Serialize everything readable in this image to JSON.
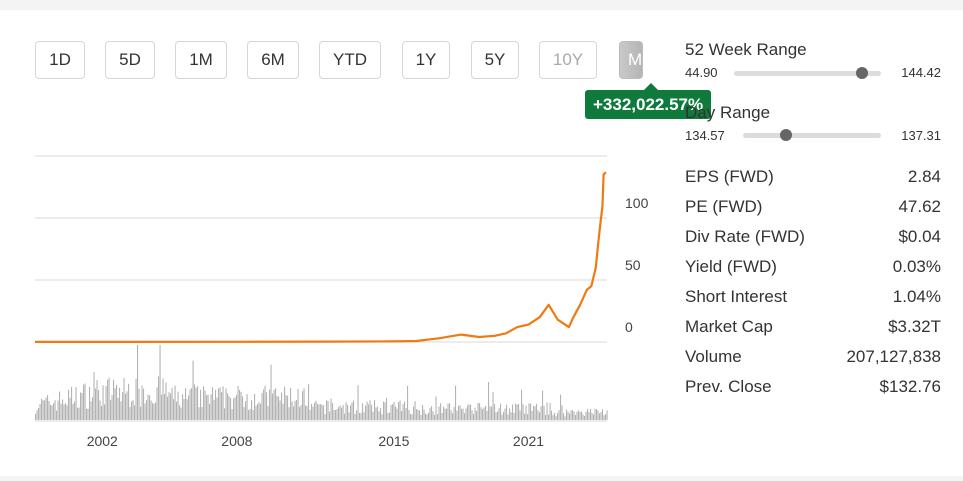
{
  "periods": [
    {
      "label": "1D",
      "state": "normal"
    },
    {
      "label": "5D",
      "state": "normal"
    },
    {
      "label": "1M",
      "state": "normal"
    },
    {
      "label": "6M",
      "state": "normal"
    },
    {
      "label": "YTD",
      "state": "normal"
    },
    {
      "label": "1Y",
      "state": "normal"
    },
    {
      "label": "5Y",
      "state": "normal"
    },
    {
      "label": "10Y",
      "state": "disabled"
    },
    {
      "label": "MA",
      "state": "active"
    }
  ],
  "change_badge": "+332,022.57%",
  "ranges": [
    {
      "title": "52 Week Range",
      "low": "44.90",
      "high": "144.42",
      "position": 0.87
    },
    {
      "title": "Day Range",
      "low": "134.57",
      "high": "137.31",
      "position": 0.31
    }
  ],
  "stats": [
    {
      "label": "EPS (FWD)",
      "value": "2.84"
    },
    {
      "label": "PE (FWD)",
      "value": "47.62"
    },
    {
      "label": "Div Rate (FWD)",
      "value": "$0.04"
    },
    {
      "label": "Yield (FWD)",
      "value": "0.03%"
    },
    {
      "label": "Short Interest",
      "value": "1.04%"
    },
    {
      "label": "Market Cap",
      "value": "$3.32T"
    },
    {
      "label": "Volume",
      "value": "207,127,838"
    },
    {
      "label": "Prev. Close",
      "value": "$132.76"
    }
  ],
  "colors": {
    "price_line": "#f07a12",
    "volume": "#b3b3b3",
    "grid": "#d8d8d8",
    "badge": "#0f7a3b"
  },
  "chart_data": {
    "type": "line",
    "title": "",
    "xlabel": "",
    "ylabel": "",
    "x_ticks": [
      "2002",
      "2008",
      "2015",
      "2021"
    ],
    "y_ticks": [
      "0",
      "50",
      "100"
    ],
    "ylim": [
      0,
      150
    ],
    "xlim": [
      1999.0,
      2024.5
    ],
    "grid": true,
    "series": [
      {
        "values_x": [
          1999.0,
          2003.0,
          2008.0,
          2012.0,
          2015.0,
          2016.0,
          2017.0,
          2018.0,
          2018.8,
          2019.5,
          2020.0,
          2020.5,
          2021.0,
          2021.5,
          2021.9,
          2022.3,
          2022.8,
          2023.0,
          2023.3,
          2023.6,
          2023.8,
          2024.0,
          2024.1,
          2024.2,
          2024.3,
          2024.35,
          2024.45
        ],
        "values_y": [
          0.1,
          0.1,
          0.2,
          0.3,
          0.5,
          0.8,
          3,
          6,
          4,
          5,
          7,
          12,
          14,
          20,
          30,
          18,
          12,
          20,
          30,
          42,
          45,
          60,
          78,
          95,
          110,
          135,
          137
        ]
      }
    ],
    "volume_note": "bars"
  }
}
